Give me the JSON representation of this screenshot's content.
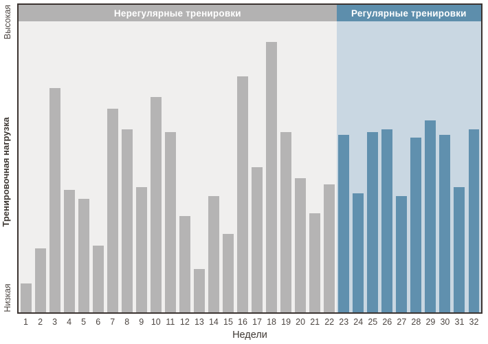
{
  "chart_data": {
    "type": "bar",
    "title": "",
    "xlabel": "Недели",
    "ylabel": "Тренировочная нагрузка",
    "y_axis_top_label": "Высокая",
    "y_axis_bottom_label": "Низкая",
    "categories": [
      1,
      2,
      3,
      4,
      5,
      6,
      7,
      8,
      9,
      10,
      11,
      12,
      13,
      14,
      15,
      16,
      17,
      18,
      19,
      20,
      21,
      22,
      23,
      24,
      25,
      26,
      27,
      28,
      29,
      30,
      31,
      32
    ],
    "values": [
      10,
      22,
      77,
      42,
      39,
      23,
      70,
      63,
      43,
      74,
      62,
      33,
      15,
      40,
      27,
      81,
      50,
      93,
      62,
      46,
      34,
      44,
      61,
      41,
      62,
      63,
      40,
      60,
      66,
      61,
      43,
      63
    ],
    "values_unit": "relative training load (percent of plot height, 0-100)",
    "ylim": [
      0,
      100
    ],
    "grid": false,
    "legend_position": "none",
    "regions": [
      {
        "label": "Нерегулярные тренировки",
        "weeks_start": 1,
        "weeks_end": 22,
        "band_color": "#b3b2b2",
        "background_color": "#f0efee",
        "bar_color": "#b5b4b4"
      },
      {
        "label": "Регулярные тренировки",
        "weeks_start": 23,
        "weeks_end": 32,
        "band_color": "#5d8eac",
        "background_color": "#c9d7e2",
        "bar_color": "#6090ae"
      }
    ],
    "colors": {
      "border": "#3b3330",
      "axis_text": "#4c4541",
      "band_text": "#ffffff"
    }
  }
}
